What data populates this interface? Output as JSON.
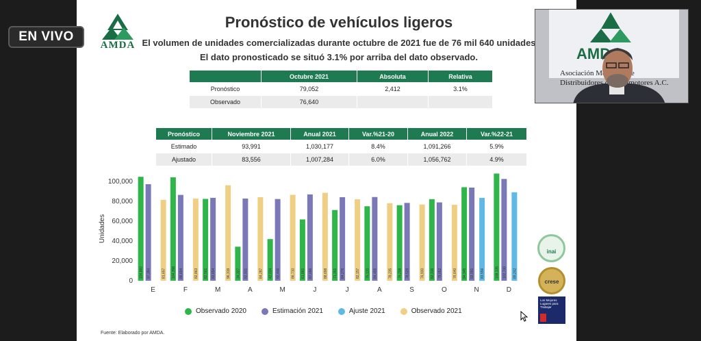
{
  "live_badge": "EN VIVO",
  "logo_text": "AMDA",
  "title": "Pronóstico de vehículos ligeros",
  "subtitle_1": "El volumen de unidades comercializadas durante octubre de 2021 fue de 76 mil 640 unidades",
  "subtitle_2": "El dato pronosticado se situó 3.1% por arriba del dato observado.",
  "table1": {
    "headers": [
      "",
      "Octubre 2021",
      "Absoluta",
      "Relativa"
    ],
    "rows": [
      [
        "Pronóstico",
        "79,052",
        "2,412",
        "3.1%"
      ],
      [
        "Observado",
        "76,640",
        "",
        ""
      ]
    ]
  },
  "table2": {
    "headers": [
      "Pronóstico",
      "Noviembre 2021",
      "Anual 2021",
      "Var.%21-20",
      "Anual 2022",
      "Var.%22-21"
    ],
    "rows": [
      [
        "Estimado",
        "93,991",
        "1,030,177",
        "8.4%",
        "1,091,266",
        "5.9%"
      ],
      [
        "Ajustado",
        "83,556",
        "1,007,284",
        "6.0%",
        "1,056,762",
        "4.9%"
      ]
    ]
  },
  "source": "Fuente: Elaborado por AMDA.",
  "webcam_text": [
    "Asociación Mexicana de",
    "Distribuidores de Automotores A.C."
  ],
  "badges": {
    "inai": "inai",
    "crese": "crese",
    "gptw": "Los Mejores Lugares para Trabajar"
  },
  "chart_data": {
    "type": "bar",
    "ylabel": "Unidades",
    "ylim": [
      0,
      105000
    ],
    "yticks": [
      "0",
      "20,000",
      "40,000",
      "60,000",
      "80,000",
      "100,000"
    ],
    "categories": [
      "E",
      "F",
      "M",
      "A",
      "M",
      "J",
      "J",
      "A",
      "S",
      "O",
      "N",
      "D"
    ],
    "series": [
      {
        "name": "Observado 2020",
        "color": "#2fb54a",
        "values": [
          104882,
          104358,
          82561,
          34327,
          42034,
          61861,
          71351,
          75120,
          76208,
          82316,
          94345,
          108135
        ],
        "labels": [
          "104,882",
          "104,358",
          "82,561",
          "34,327",
          "42,034",
          "61,861",
          "71,351",
          "75,120",
          "76,208",
          "82,316",
          "94,345",
          "108,135"
        ]
      },
      {
        "name": "Estimación 2021",
        "color": "#7b78b8",
        "values": [
          97394,
          86604,
          83654,
          82931,
          82446,
          87096,
          84276,
          84455,
          78528,
          79052,
          93991,
          102700
        ],
        "labels": [
          "97,394",
          "86,604",
          "83,654",
          "82,931",
          "82,446",
          "87,096",
          "84,276",
          "84,455",
          "78,528",
          "79,052",
          "93,991",
          "102,700"
        ]
      },
      {
        "name": "Ajuste 2021",
        "color": "#5fb9e4",
        "values": [
          null,
          null,
          null,
          null,
          null,
          null,
          null,
          null,
          null,
          null,
          83556,
          89242
        ],
        "labels": [
          "",
          "",
          "",
          "",
          "",
          "",
          "",
          "",
          "",
          "",
          "83,556",
          "89,242"
        ]
      },
      {
        "name": "Observado 2021",
        "color": "#efcf84",
        "values": [
          81657,
          82863,
          96319,
          84287,
          86710,
          88698,
          82157,
          78235,
          76930,
          76640,
          null,
          null
        ],
        "labels": [
          "81,657",
          "82,863",
          "96,319",
          "84,287",
          "86,710",
          "88,698",
          "82,157",
          "78,235",
          "76,930",
          "76,640",
          "",
          ""
        ]
      }
    ]
  }
}
